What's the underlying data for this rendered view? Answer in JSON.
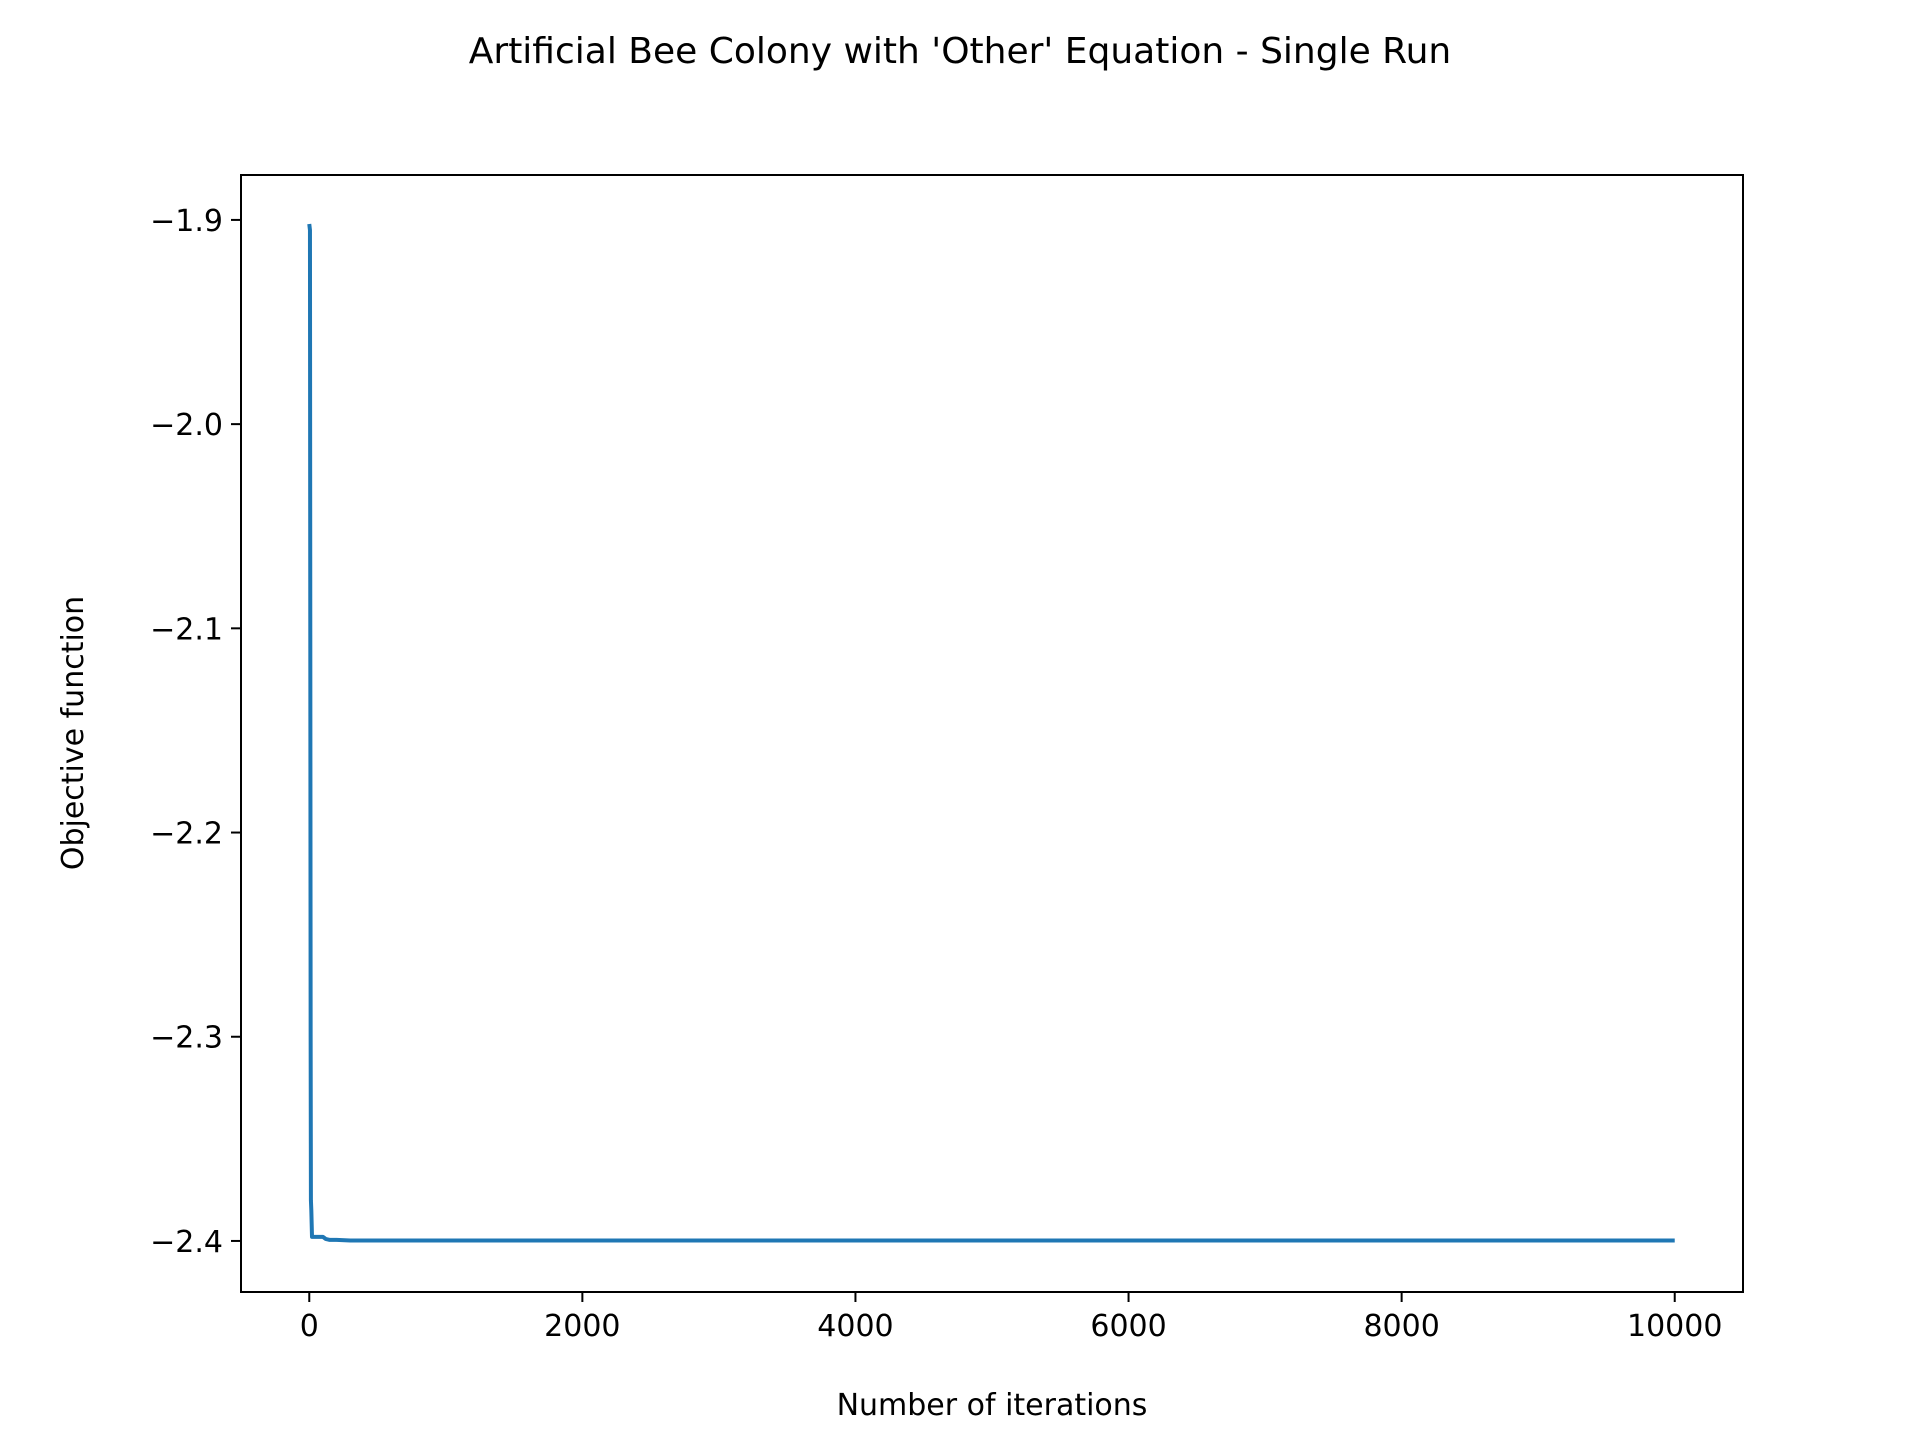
{
  "chart_data": {
    "type": "line",
    "title": "Artificial Bee Colony with 'Other' Equation - Single Run",
    "xlabel": "Number of iterations",
    "ylabel": "Objective function",
    "xlim": [
      -500,
      10500
    ],
    "ylim": [
      -2.425,
      -1.878
    ],
    "xticks": [
      0,
      2000,
      4000,
      6000,
      8000,
      10000
    ],
    "xtick_labels": [
      "0",
      "2000",
      "4000",
      "6000",
      "8000",
      "10000"
    ],
    "yticks": [
      -1.9,
      -2.0,
      -2.1,
      -2.2,
      -2.3,
      -2.4
    ],
    "ytick_labels": [
      "−1.9",
      "−2.0",
      "−2.1",
      "−2.2",
      "−2.3",
      "−2.4"
    ],
    "grid": false,
    "line_color": "#1f77b4",
    "series": [
      {
        "x": [
          0,
          5,
          10,
          12,
          15,
          20,
          30,
          50,
          80,
          100,
          120,
          150,
          200,
          300,
          1000,
          2000,
          4000,
          6000,
          8000,
          10000
        ],
        "values": [
          -1.902,
          -1.905,
          -2.3,
          -2.38,
          -2.385,
          -2.398,
          -2.398,
          -2.398,
          -2.398,
          -2.398,
          -2.399,
          -2.3995,
          -2.3995,
          -2.3998,
          -2.3998,
          -2.3998,
          -2.3998,
          -2.3998,
          -2.3998,
          -2.3998
        ]
      }
    ]
  }
}
